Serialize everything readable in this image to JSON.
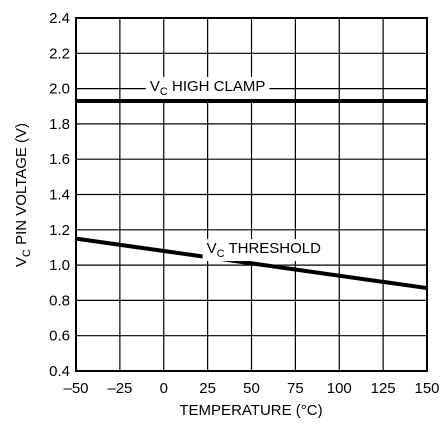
{
  "chart_data": {
    "type": "line",
    "xlabel": "TEMPERATURE (°C)",
    "ylabel_parts": {
      "prefix": "V",
      "sub": "C",
      "suffix": " PIN VOLTAGE (V)"
    },
    "xlim": [
      -50,
      150
    ],
    "ylim": [
      0.4,
      2.4
    ],
    "x_ticks": [
      -50,
      -25,
      0,
      25,
      50,
      75,
      100,
      125,
      150
    ],
    "x_tick_labels": [
      "–50",
      "–25",
      "0",
      "25",
      "50",
      "75",
      "100",
      "125",
      "150"
    ],
    "y_ticks": [
      0.4,
      0.6,
      0.8,
      1.0,
      1.2,
      1.4,
      1.6,
      1.8,
      2.0,
      2.2,
      2.4
    ],
    "y_tick_labels": [
      "0.4",
      "0.6",
      "0.8",
      "1.0",
      "1.2",
      "1.4",
      "1.6",
      "1.8",
      "2.0",
      "2.2",
      "2.4"
    ],
    "grid": true,
    "series": [
      {
        "label_parts": {
          "prefix": "V",
          "sub": "C",
          "suffix": " HIGH CLAMP"
        },
        "x": [
          -50,
          150
        ],
        "y": [
          1.93,
          1.93
        ]
      },
      {
        "label_parts": {
          "prefix": "V",
          "sub": "C",
          "suffix": " THRESHOLD"
        },
        "x": [
          -50,
          150
        ],
        "y": [
          1.15,
          0.87
        ]
      }
    ]
  }
}
